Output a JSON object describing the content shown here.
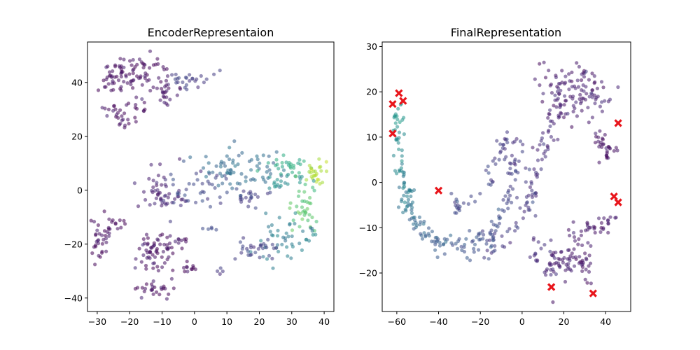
{
  "colors": {
    "axis": "#000000",
    "point_low": "#440154",
    "point_mid": "#31688e",
    "point_high": "#b5de2b",
    "marker": "#e8151b"
  },
  "chart_data": [
    {
      "type": "scatter",
      "title": "EncoderRepresentaion",
      "xlabel": "",
      "ylabel": "",
      "xlim": [
        -33,
        43
      ],
      "ylim": [
        -45,
        55
      ],
      "xticks": [
        -30,
        -20,
        -10,
        0,
        10,
        20,
        30,
        40
      ],
      "yticks": [
        -40,
        -20,
        0,
        20,
        40
      ],
      "grid": false,
      "clusters": [
        {
          "cx": -18,
          "cy": 44,
          "sx": 5,
          "sy": 3,
          "n": 70,
          "c": 0.03
        },
        {
          "cx": -26,
          "cy": 41,
          "sx": 1.2,
          "sy": 2,
          "n": 18,
          "c": 0.03
        },
        {
          "cx": -9,
          "cy": 37,
          "sx": 2,
          "sy": 2.5,
          "n": 25,
          "c": 0.05
        },
        {
          "cx": -1,
          "cy": 41,
          "sx": 4,
          "sy": 1.5,
          "n": 25,
          "c": 0.18
        },
        {
          "cx": -21,
          "cy": 29,
          "sx": 4,
          "sy": 2,
          "n": 30,
          "c": 0.03
        },
        {
          "cx": -22,
          "cy": 25,
          "sx": 1,
          "sy": 1.5,
          "n": 6,
          "c": 0.03
        },
        {
          "cx": -11,
          "cy": 0,
          "sx": 3.5,
          "sy": 4,
          "n": 50,
          "c": 0.1
        },
        {
          "cx": 0,
          "cy": 1,
          "sx": 5,
          "sy": 3,
          "n": 40,
          "c": 0.2
        },
        {
          "cx": 14,
          "cy": 7,
          "sx": 7,
          "sy": 4,
          "n": 70,
          "c": 0.35
        },
        {
          "cx": 28,
          "cy": 10,
          "sx": 4,
          "sy": 2,
          "n": 25,
          "c": 0.6
        },
        {
          "cx": 37,
          "cy": 6,
          "sx": 2,
          "sy": 2.5,
          "n": 25,
          "c": 0.88
        },
        {
          "cx": 27,
          "cy": 3,
          "sx": 4,
          "sy": 1.5,
          "n": 20,
          "c": 0.5
        },
        {
          "cx": 34,
          "cy": -6,
          "sx": 1.8,
          "sy": 5,
          "n": 35,
          "c": 0.72
        },
        {
          "cx": 28,
          "cy": -18,
          "sx": 5,
          "sy": 4,
          "n": 45,
          "c": 0.42
        },
        {
          "cx": 18,
          "cy": -22,
          "sx": 4,
          "sy": 2,
          "n": 30,
          "c": 0.2
        },
        {
          "cx": 15,
          "cy": -3,
          "sx": 4,
          "sy": 1.5,
          "n": 20,
          "c": 0.18
        },
        {
          "cx": -29,
          "cy": -17,
          "sx": 1.8,
          "sy": 4,
          "n": 35,
          "c": 0.03
        },
        {
          "cx": -23,
          "cy": -12,
          "sx": 1.5,
          "sy": 2,
          "n": 10,
          "c": 0.03
        },
        {
          "cx": -12,
          "cy": -23,
          "sx": 4,
          "sy": 4,
          "n": 65,
          "c": 0.04
        },
        {
          "cx": -4,
          "cy": -19,
          "sx": 1.5,
          "sy": 1,
          "n": 8,
          "c": 0.05
        },
        {
          "cx": -2,
          "cy": -29,
          "sx": 1.5,
          "sy": 1,
          "n": 10,
          "c": 0.04
        },
        {
          "cx": -13,
          "cy": -37,
          "sx": 3,
          "sy": 1.8,
          "n": 25,
          "c": 0.03
        },
        {
          "cx": 8,
          "cy": -30,
          "sx": 1,
          "sy": 1,
          "n": 4,
          "c": 0.15
        },
        {
          "cx": 4,
          "cy": -15,
          "sx": 1.5,
          "sy": 1,
          "n": 5,
          "c": 0.2
        }
      ],
      "highlight": []
    },
    {
      "type": "scatter",
      "title": "FinalRepresentation",
      "xlabel": "",
      "ylabel": "",
      "xlim": [
        -67,
        52
      ],
      "ylim": [
        -28.5,
        31
      ],
      "xticks": [
        -60,
        -40,
        -20,
        0,
        20,
        40
      ],
      "yticks": [
        -20,
        -10,
        0,
        10,
        20,
        30
      ],
      "grid": false,
      "curves": [
        {
          "points": [
            [
              -59,
              18
            ],
            [
              -60,
              10
            ],
            [
              -58,
              2
            ],
            [
              -55,
              -4
            ],
            [
              -52,
              -8
            ],
            [
              -46,
              -11
            ]
          ],
          "n": 95,
          "spread": 1.7,
          "c0": 0.55,
          "c1": 0.3
        },
        {
          "points": [
            [
              -46,
              -11
            ],
            [
              -38,
              -14
            ],
            [
              -28,
              -14
            ],
            [
              -20,
              -13
            ],
            [
              -13,
              -10
            ],
            [
              -8,
              -4
            ],
            [
              -4,
              3
            ],
            [
              -2,
              9
            ]
          ],
          "n": 110,
          "spread": 1.8,
          "c0": 0.3,
          "c1": 0.16
        },
        {
          "points": [
            [
              -34,
              -6
            ],
            [
              -25,
              -4
            ],
            [
              -16,
              -1
            ],
            [
              -11,
              5
            ],
            [
              -7,
              11
            ]
          ],
          "n": 45,
          "spread": 1.5,
          "c0": 0.22,
          "c1": 0.15
        },
        {
          "points": [
            [
              -18,
              -15
            ],
            [
              -8,
              -12
            ],
            [
              2,
              -5
            ],
            [
              6,
              2
            ],
            [
              10,
              8
            ],
            [
              14,
              13
            ],
            [
              20,
              18
            ]
          ],
          "n": 90,
          "spread": 1.9,
          "c0": 0.18,
          "c1": 0.1
        },
        {
          "points": [
            [
              34,
              10
            ],
            [
              40,
              8
            ],
            [
              45,
              6
            ]
          ],
          "n": 30,
          "spread": 1.6,
          "c0": 0.05,
          "c1": 0.04
        },
        {
          "points": [
            [
              20,
              -20
            ],
            [
              28,
              -12
            ],
            [
              36,
              -10
            ],
            [
              44,
              -8
            ]
          ],
          "n": 45,
          "spread": 1.8,
          "c0": 0.08,
          "c1": 0.05
        },
        {
          "points": [
            [
              30,
              -16
            ],
            [
              31,
              -22
            ],
            [
              33,
              -24
            ]
          ],
          "n": 15,
          "spread": 1.2,
          "c0": 0.06,
          "c1": 0.05
        }
      ],
      "clusters": [
        {
          "cx": 25,
          "cy": 20,
          "sx": 8,
          "sy": 3.5,
          "n": 110,
          "c": 0.08
        },
        {
          "cx": 15,
          "cy": -18,
          "sx": 3,
          "sy": 2.5,
          "n": 30,
          "c": 0.1
        },
        {
          "cx": 7,
          "cy": -15,
          "sx": 2,
          "sy": 1.5,
          "n": 12,
          "c": 0.12
        },
        {
          "cx": 25,
          "cy": -16,
          "sx": 4,
          "sy": 3,
          "n": 25,
          "c": 0.08
        }
      ],
      "highlight": [
        [
          -59,
          19.7
        ],
        [
          -62,
          17.3
        ],
        [
          -57,
          18
        ],
        [
          -62,
          10.8
        ],
        [
          -40,
          -1.8
        ],
        [
          46,
          13.1
        ],
        [
          44,
          -3.1
        ],
        [
          46,
          -4.4
        ],
        [
          14,
          -23.1
        ],
        [
          34,
          -24.5
        ]
      ]
    }
  ]
}
